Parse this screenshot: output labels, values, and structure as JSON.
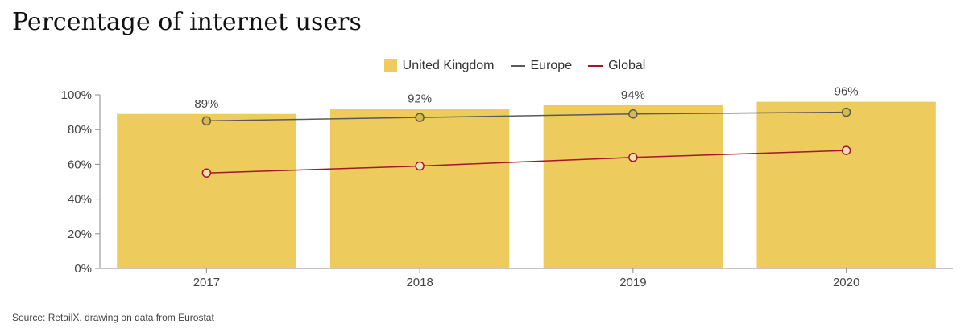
{
  "title": "Percentage of internet users",
  "source": "Source: RetailX, drawing on data from Eurostat",
  "legend": [
    {
      "label": "United Kingdom",
      "kind": "bar",
      "color": "#EDCB5C"
    },
    {
      "label": "Europe",
      "kind": "line",
      "color": "#5A5A5A"
    },
    {
      "label": "Global",
      "kind": "line",
      "color": "#A3162C"
    }
  ],
  "chart_data": {
    "type": "bar",
    "title": "Percentage of internet users",
    "xlabel": "",
    "ylabel": "",
    "categories": [
      "2017",
      "2018",
      "2019",
      "2020"
    ],
    "ylim": [
      0,
      100
    ],
    "yticks": [
      "0%",
      "20%",
      "40%",
      "60%",
      "80%",
      "100%"
    ],
    "grid": false,
    "legend_position": "top",
    "series": [
      {
        "name": "United Kingdom",
        "kind": "bar",
        "values": [
          89,
          92,
          94,
          96
        ],
        "labels": [
          "89%",
          "92%",
          "94%",
          "96%"
        ],
        "color": "#EDCB5C"
      },
      {
        "name": "Europe",
        "kind": "line",
        "values": [
          85,
          87,
          89,
          90
        ],
        "color": "#5A5A5A",
        "marker_fill": "#D9B84E"
      },
      {
        "name": "Global",
        "kind": "line",
        "values": [
          55,
          59,
          64,
          68
        ],
        "color": "#A3162C",
        "marker_fill": "#F3E2B0"
      }
    ]
  }
}
